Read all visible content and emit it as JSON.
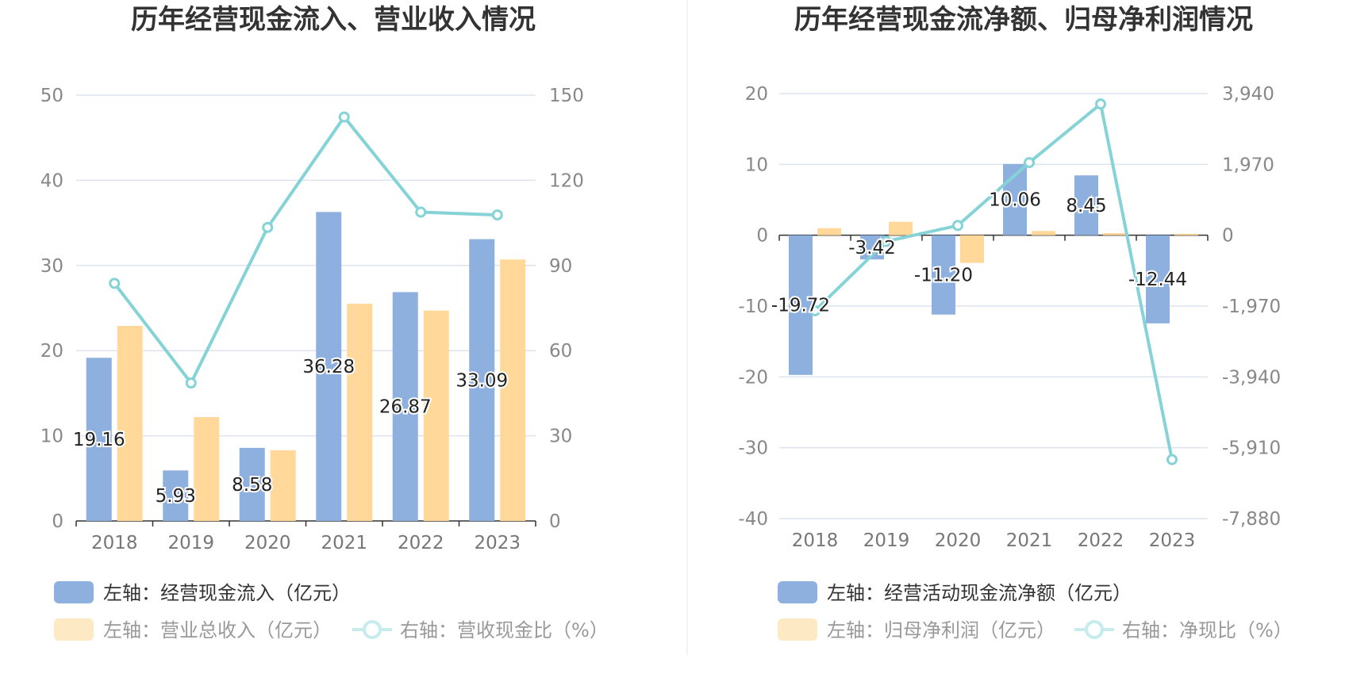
{
  "colors": {
    "bar_primary": "#8eb0de",
    "bar_secondary": "#ffd89a",
    "line": "#85d3d6",
    "grid": "#dde3ee",
    "axis": "#333333",
    "title": "#333333",
    "legend_text": "#333333",
    "legend_text_muted": "#999999",
    "legend_swatch_muted": "#fde9c4",
    "legend_line_muted": "#c6ecee"
  },
  "chart_data": [
    {
      "type": "bar",
      "title": "历年经营现金流入、营业收入情况",
      "categories": [
        "2018",
        "2019",
        "2020",
        "2021",
        "2022",
        "2023"
      ],
      "left_axis": {
        "min": 0,
        "max": 50,
        "ticks": [
          "0",
          "10",
          "20",
          "30",
          "40",
          "50"
        ]
      },
      "right_axis": {
        "min": 0,
        "max": 150,
        "ticks": [
          "0",
          "30",
          "60",
          "90",
          "120",
          "150"
        ]
      },
      "grid": true,
      "legend_position": "bottom",
      "series": [
        {
          "name": "左轴：经营现金流入（亿元）",
          "type": "bar",
          "axis": "left",
          "values": [
            19.16,
            5.93,
            8.58,
            36.28,
            26.87,
            33.09
          ],
          "labels": [
            "19.16",
            "5.93",
            "8.58",
            "36.28",
            "26.87",
            "33.09"
          ]
        },
        {
          "name": "左轴：营业总收入（亿元）",
          "type": "bar",
          "axis": "left",
          "values": [
            22.9,
            12.2,
            8.3,
            25.5,
            24.7,
            30.7
          ]
        },
        {
          "name": "右轴：营收现金比（%）",
          "type": "line",
          "axis": "right",
          "values": [
            83.7,
            48.6,
            103.4,
            142.3,
            108.8,
            107.8
          ]
        }
      ]
    },
    {
      "type": "bar",
      "title": "历年经营现金流净额、归母净利润情况",
      "categories": [
        "2018",
        "2019",
        "2020",
        "2021",
        "2022",
        "2023"
      ],
      "left_axis": {
        "min": -40,
        "max": 20,
        "ticks": [
          "-40",
          "-30",
          "-20",
          "-10",
          "0",
          "10",
          "20"
        ]
      },
      "right_axis": {
        "min": -7880,
        "max": 3940,
        "ticks": [
          "-7,880",
          "-5,910",
          "-3,940",
          "-1,970",
          "0",
          "1,970",
          "3,940"
        ]
      },
      "grid": true,
      "legend_position": "bottom",
      "series": [
        {
          "name": "左轴：经营活动现金流净额（亿元）",
          "type": "bar",
          "axis": "left",
          "values": [
            -19.72,
            -3.42,
            -11.2,
            10.06,
            8.45,
            -12.44
          ],
          "labels": [
            "-19.72",
            "-3.42",
            "-11.20",
            "10.06",
            "8.45",
            "-12.44"
          ]
        },
        {
          "name": "左轴：归母净利润（亿元）",
          "type": "bar",
          "axis": "left",
          "values": [
            1.0,
            1.9,
            -3.9,
            0.6,
            0.3,
            0.2
          ]
        },
        {
          "name": "右轴：净现比（%）",
          "type": "line",
          "axis": "right",
          "values": [
            -2100,
            -170,
            270,
            2020,
            3650,
            -6240
          ]
        }
      ]
    }
  ]
}
